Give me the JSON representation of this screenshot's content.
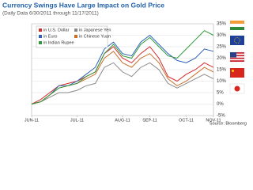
{
  "chart_data": {
    "type": "line",
    "title": "Currency Swings Have Large Impact on Gold Price",
    "subtitle": "(Daily Data 6/30/2011 through 11/17/2011)",
    "source": "Source: Bloomberg",
    "categories": [
      "JUN-11",
      null,
      null,
      null,
      null,
      "JUL-11",
      null,
      null,
      null,
      null,
      "AUG-11",
      null,
      null,
      "SEP-11",
      null,
      null,
      null,
      "OCT-11",
      null,
      null,
      "NOV-11"
    ],
    "series": [
      {
        "name": "in U.S. Dollar",
        "color": "#d62b2b",
        "values": [
          0,
          2,
          5,
          8,
          9,
          10,
          12,
          14,
          22,
          25,
          20,
          18,
          22,
          25,
          20,
          12,
          10,
          13,
          15,
          18,
          16
        ]
      },
      {
        "name": "in Euro",
        "color": "#2d62b8",
        "values": [
          0,
          1,
          4,
          8,
          8,
          10,
          13,
          16,
          24,
          27,
          22,
          21,
          27,
          30,
          26,
          22,
          19,
          18,
          20,
          24,
          23
        ]
      },
      {
        "name": "in Japanese Yen",
        "color": "#8a8a8a",
        "values": [
          0,
          1,
          3,
          5,
          5,
          6,
          8,
          9,
          16,
          18,
          14,
          12,
          16,
          18,
          15,
          9,
          7,
          9,
          11,
          13,
          11
        ]
      },
      {
        "name": "in Chinese Yuan",
        "color": "#c8702a",
        "values": [
          0,
          1,
          4,
          7,
          8,
          9,
          11,
          13,
          20,
          23,
          18,
          16,
          20,
          22,
          18,
          11,
          8,
          10,
          13,
          16,
          14
        ]
      },
      {
        "name": "in Indian Rupee",
        "color": "#2e9a3a",
        "values": [
          0,
          1,
          4,
          7,
          8,
          9,
          12,
          14,
          22,
          26,
          21,
          20,
          26,
          29,
          25,
          21,
          20,
          24,
          28,
          32,
          30
        ]
      }
    ],
    "ylim": [
      -5,
      35
    ],
    "yticks": [
      {
        "value": -5,
        "label": "-5%"
      },
      {
        "value": 0,
        "label": "0%"
      },
      {
        "value": 5,
        "label": "5%"
      },
      {
        "value": 10,
        "label": "10%"
      },
      {
        "value": 15,
        "label": "15%"
      },
      {
        "value": 20,
        "label": "20%"
      },
      {
        "value": 25,
        "label": "25%"
      },
      {
        "value": 30,
        "label": "30%"
      },
      {
        "value": 35,
        "label": "35%"
      }
    ],
    "grid": true,
    "legend": "upper left"
  }
}
